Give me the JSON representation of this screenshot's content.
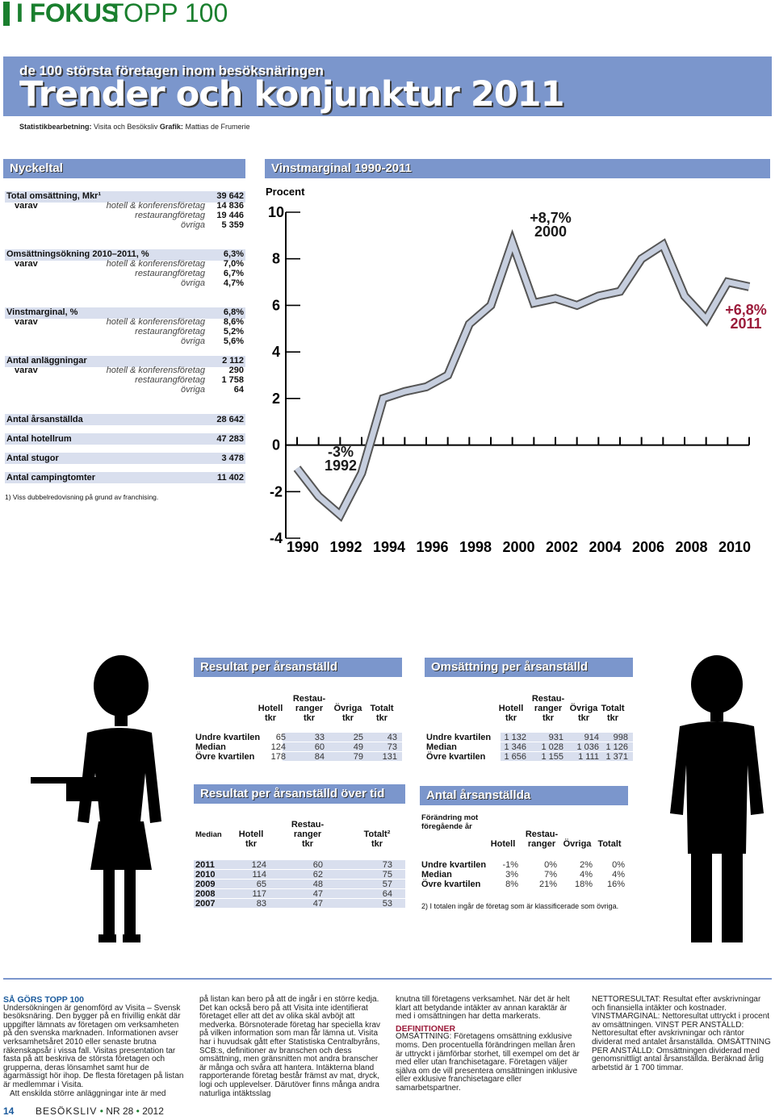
{
  "header": {
    "section": "I FOKUS",
    "series": "TOPP 100",
    "subtitle": "de 100 största företagen inom besöksnäringen",
    "title": "Trender och konjunktur 2011",
    "credits_label1": "Statistikbearbetning:",
    "credits_value1": "Visita och Besöksliv",
    "credits_label2": "Grafik:",
    "credits_value2": "Mattias de Frumerie"
  },
  "nyckeltal": {
    "heading": "Nyckeltal",
    "groups": [
      {
        "label": "Total omsättning, Mkr¹",
        "value": "39 642",
        "varav": "varav",
        "rows": [
          {
            "sub": "hotell & konferensföretag",
            "value": "14 836"
          },
          {
            "sub": "restaurangföretag",
            "value": "19 446"
          },
          {
            "sub": "övriga",
            "value": "5 359"
          }
        ]
      },
      {
        "label": "Omsättningsökning 2010–2011, %",
        "value": "6,3%",
        "varav": "varav",
        "rows": [
          {
            "sub": "hotell & konferensföretag",
            "value": "7,0%"
          },
          {
            "sub": "restaurangföretag",
            "value": "6,7%"
          },
          {
            "sub": "övriga",
            "value": "4,7%"
          }
        ]
      },
      {
        "label": "Vinstmarginal, %",
        "value": "6,8%",
        "varav": "varav",
        "rows": [
          {
            "sub": "hotell & konferensföretag",
            "value": "8,6%"
          },
          {
            "sub": "restaurangföretag",
            "value": "5,2%"
          },
          {
            "sub": "övriga",
            "value": "5,6%"
          }
        ]
      },
      {
        "label": "Antal anläggningar",
        "value": "2 112",
        "varav": "varav",
        "rows": [
          {
            "sub": "hotell & konferensföretag",
            "value": "290"
          },
          {
            "sub": "restaurangföretag",
            "value": "1 758"
          },
          {
            "sub": "övriga",
            "value": "64"
          }
        ]
      }
    ],
    "singles": [
      {
        "label": "Antal årsanställda",
        "value": "28 642"
      },
      {
        "label": "Antal hotellrum",
        "value": "47 283"
      },
      {
        "label": "Antal stugor",
        "value": "3 478"
      },
      {
        "label": "Antal campingtomter",
        "value": "11 402"
      }
    ],
    "footnote": "1) Viss dubbelredovisning på grund av franchising."
  },
  "chart_data": {
    "type": "line",
    "title": "Vinstmarginal 1990-2011",
    "ylabel": "Procent",
    "ylim": [
      -4,
      10
    ],
    "yticks": [
      "10",
      "8",
      "6",
      "4",
      "2",
      "0",
      "-2",
      "-4"
    ],
    "xticks": [
      "1990",
      "1992",
      "1994",
      "1996",
      "1998",
      "2000",
      "2002",
      "2004",
      "2006",
      "2008",
      "2010"
    ],
    "x": [
      1990,
      1991,
      1992,
      1993,
      1994,
      1995,
      1996,
      1997,
      1998,
      1999,
      2000,
      2001,
      2002,
      2003,
      2004,
      2005,
      2006,
      2007,
      2008,
      2009,
      2010,
      2011
    ],
    "values": [
      -1.0,
      -2.2,
      -3.0,
      -1.2,
      2.0,
      2.3,
      2.5,
      3.0,
      5.2,
      6.0,
      8.7,
      6.1,
      6.3,
      6.0,
      6.4,
      6.6,
      8.0,
      8.6,
      6.4,
      5.4,
      7.0,
      6.8
    ],
    "annotations": [
      {
        "value": "+8,7%",
        "year": "2000"
      },
      {
        "value": "-3%",
        "year": "1992"
      },
      {
        "value": "+6,8%",
        "year": "2011"
      }
    ],
    "colors": {
      "line": "#c6cede",
      "annotation_max": "#1a1a1a",
      "annotation_last": "#9b1b3a"
    }
  },
  "resultat_per": {
    "heading": "Resultat per årsanställd",
    "headers": [
      "Hotell\ntkr",
      "Restau-\nranger\ntkr",
      "Övriga\ntkr",
      "Totalt\ntkr"
    ],
    "rows": [
      {
        "label": "Undre kvartilen",
        "values": [
          "65",
          "33",
          "25",
          "43"
        ]
      },
      {
        "label": "Median",
        "values": [
          "124",
          "60",
          "49",
          "73"
        ]
      },
      {
        "label": "Övre kvartilen",
        "values": [
          "178",
          "84",
          "79",
          "131"
        ]
      }
    ]
  },
  "omsattning_per": {
    "heading": "Omsättning per årsanställd",
    "headers": [
      "Hotell\ntkr",
      "Restau-\nranger\ntkr",
      "Övriga\ntkr",
      "Totalt\ntkr"
    ],
    "rows": [
      {
        "label": "Undre kvartilen",
        "values": [
          "1 132",
          "931",
          "914",
          "998"
        ]
      },
      {
        "label": "Median",
        "values": [
          "1 346",
          "1 028",
          "1 036",
          "1 126"
        ]
      },
      {
        "label": "Övre kvartilen",
        "values": [
          "1 656",
          "1 155",
          "1 111",
          "1 371"
        ]
      }
    ]
  },
  "resultat_tid": {
    "heading": "Resultat per årsanställd över tid",
    "corner": "Median",
    "headers": [
      "Hotell\ntkr",
      "Restau-\nranger\ntkr",
      "Totalt²\ntkr"
    ],
    "rows": [
      {
        "label": "2011",
        "values": [
          "124",
          "60",
          "73"
        ]
      },
      {
        "label": "2010",
        "values": [
          "114",
          "62",
          "75"
        ]
      },
      {
        "label": "2009",
        "values": [
          "65",
          "48",
          "57"
        ]
      },
      {
        "label": "2008",
        "values": [
          "117",
          "47",
          "64"
        ]
      },
      {
        "label": "2007",
        "values": [
          "83",
          "47",
          "53"
        ]
      }
    ]
  },
  "antal_arsanstallda": {
    "heading": "Antal årsanställda",
    "corner": "Förändring mot\nföregående år",
    "headers": [
      "Hotell",
      "Restau-\nranger",
      "Övriga",
      "Totalt"
    ],
    "rows": [
      {
        "label": "Undre kvartilen",
        "values": [
          "-1%",
          "0%",
          "2%",
          "0%"
        ]
      },
      {
        "label": "Median",
        "values": [
          "3%",
          "7%",
          "4%",
          "4%"
        ]
      },
      {
        "label": "Övre kvartilen",
        "values": [
          "8%",
          "21%",
          "18%",
          "16%"
        ]
      }
    ],
    "footnote": "2) I totalen ingår de företag som är klassificerade som övriga."
  },
  "article": {
    "col1_heading": "SÅ GÖRS TOPP 100",
    "col1": "Undersökningen är genomförd av Visita – Svensk besöksnäring. Den bygger på en frivillig enkät där uppgifter lämnats av företagen om verksamheten på den svenska marknaden. Informationen avser verksamhetsåret 2010 eller senaste brutna räkenskapsår i vissa fall. Visitas presentation tar fasta på att beskriva de största företagen och grupperna, deras lönsamhet samt hur de ägarmässigt hör ihop. De flesta företagen på listan är medlemmar i Visita.",
    "col1b": "Att enskilda större anläggningar inte är med",
    "col2": "på listan kan bero på att de ingår i en större kedja. Det kan också bero på att Visita inte identifierat företaget eller att det av olika skäl avböjt att medverka. Börsnoterade företag har speciella krav på vilken information som man får lämna ut. Visita har i huvudsak gått efter Statistiska Centralbyråns, SCB:s, definitioner av branschen och dess omsättning, men gränsnitten mot andra branscher är många och svåra att hantera. Intäkterna bland rapporterande företag består främst av mat, dryck, logi och upplevelser. Därutöver finns många andra naturliga intäktsslag",
    "col3a": "knutna till företagens verksamhet. När det är helt klart att betydande intäkter av annan karaktär är med i omsättningen har detta markerats.",
    "col3_heading": "DEFINITIONER",
    "col3b": "OMSÄTTNING: Företagens omsättning exklusive moms. Den procentuella förändringen mellan åren är uttryckt i jämförbar storhet, till exempel om det är med eller utan franchisetagare. Företagen väljer själva om de vill presentera omsättningen inklusive eller exklusive franchisetagare eller samarbetspartner.",
    "col4": "NETTORESULTAT: Resultat efter avskrivningar och finansiella intäkter och kostnader. VINSTMARGINAL: Nettoresultat uttryckt i procent av omsättningen. VINST PER ANSTÄLLD: Nettoresultat efter avskrivningar och räntor dividerat med antalet årsanställda. OMSÄTTNING PER ANSTÄLLD: Omsättningen dividerad med genomsnittligt antal årsanställda. Beräknad årlig arbetstid är 1 700 timmar."
  },
  "footer": {
    "page": "14",
    "magazine": "BESÖKSLIV",
    "bullet": "•",
    "issue": "NR 28",
    "bullet2": "•",
    "year": "2012"
  }
}
